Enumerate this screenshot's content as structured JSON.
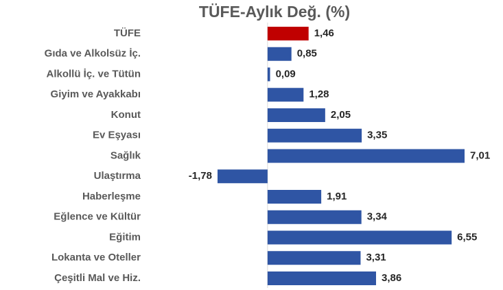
{
  "chart_data": {
    "type": "bar",
    "orientation": "horizontal",
    "title": "TÜFE-Aylık Değ. (%)",
    "categories": [
      "TÜFE",
      "Gıda ve Alkolsüz İç.",
      "Alkollü İç. ve Tütün",
      "Giyim ve Ayakkabı",
      "Konut",
      "Ev Eşyası",
      "Sağlık",
      "Ulaştırma",
      "Haberleşme",
      "Eğlence ve Kültür",
      "Eğitim",
      "Lokanta ve Oteller",
      "Çeşitli Mal ve Hiz."
    ],
    "values": [
      1.46,
      0.85,
      0.09,
      1.28,
      2.05,
      3.35,
      7.01,
      -1.78,
      1.91,
      3.34,
      6.55,
      3.31,
      3.86
    ],
    "value_labels": [
      "1,46",
      "0,85",
      "0,09",
      "1,28",
      "2,05",
      "3,35",
      "7,01",
      "-1,78",
      "1,91",
      "3,34",
      "6,55",
      "3,31",
      "3,86"
    ],
    "colors": [
      "#c00000",
      "#2f55a4",
      "#2f55a4",
      "#2f55a4",
      "#2f55a4",
      "#2f55a4",
      "#2f55a4",
      "#2f55a4",
      "#2f55a4",
      "#2f55a4",
      "#2f55a4",
      "#2f55a4",
      "#2f55a4"
    ],
    "negative_label_color": "#e00000"
  }
}
